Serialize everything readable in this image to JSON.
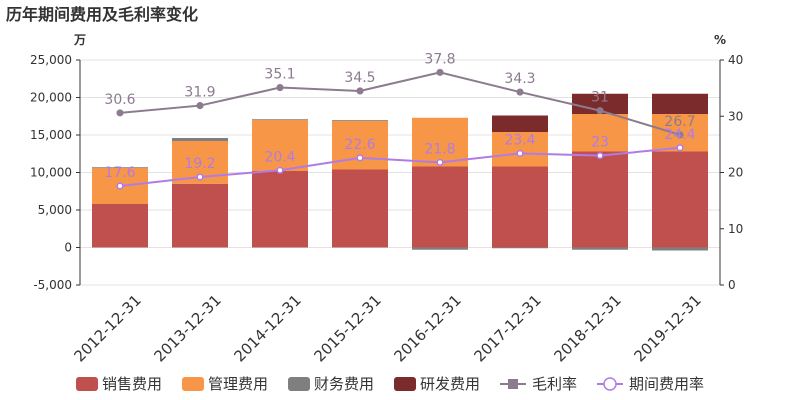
{
  "chart_data": {
    "type": "bar",
    "title": "历年期间费用及毛利率变化",
    "left_axis_unit": "万",
    "right_axis_unit": "%",
    "categories": [
      "2012-12-31",
      "2013-12-31",
      "2014-12-31",
      "2015-12-31",
      "2016-12-31",
      "2017-12-31",
      "2018-12-31",
      "2019-12-31"
    ],
    "left_axis": {
      "min": -5000,
      "max": 25000,
      "ticks": [
        -5000,
        0,
        5000,
        10000,
        15000,
        20000,
        25000
      ],
      "tick_labels": [
        "-5,000",
        "0",
        "5,000",
        "10,000",
        "15,000",
        "20,000",
        "25,000"
      ]
    },
    "right_axis": {
      "min": 0,
      "max": 40,
      "ticks": [
        0,
        10,
        20,
        30,
        40
      ],
      "tick_labels": [
        "0",
        "10",
        "20",
        "30",
        "40"
      ]
    },
    "grid": true,
    "stacked": true,
    "legend_position": "bottom",
    "series": [
      {
        "name": "销售费用",
        "kind": "bar",
        "color": "#c0504d",
        "values": [
          5800,
          8500,
          10200,
          10400,
          10800,
          10800,
          12800,
          12800
        ]
      },
      {
        "name": "管理费用",
        "kind": "bar",
        "color": "#f79646",
        "values": [
          4800,
          5700,
          6800,
          6500,
          6500,
          4600,
          5000,
          5000
        ]
      },
      {
        "name": "财务费用",
        "kind": "bar",
        "color": "#7f7f7f",
        "values": [
          100,
          400,
          100,
          100,
          -300,
          -100,
          -300,
          -400
        ]
      },
      {
        "name": "研发费用",
        "kind": "bar",
        "color": "#7b2b2b",
        "values": [
          0,
          0,
          0,
          0,
          0,
          2200,
          2700,
          2700
        ]
      },
      {
        "name": "毛利率",
        "kind": "line",
        "axis": "right",
        "color": "#8c7b8f",
        "values": [
          30.6,
          31.9,
          35.1,
          34.5,
          37.8,
          34.3,
          31,
          26.7
        ],
        "labels": [
          "30.6",
          "31.9",
          "35.1",
          "34.5",
          "37.8",
          "34.3",
          "31",
          "26.7"
        ]
      },
      {
        "name": "期间费用率",
        "kind": "line",
        "axis": "right",
        "color": "#b17be6",
        "values": [
          17.6,
          19.2,
          20.4,
          22.6,
          21.8,
          23.4,
          23,
          24.4
        ],
        "labels": [
          "17.6",
          "19.2",
          "20.4",
          "22.6",
          "21.8",
          "23.4",
          "23",
          "24.4"
        ]
      }
    ]
  }
}
